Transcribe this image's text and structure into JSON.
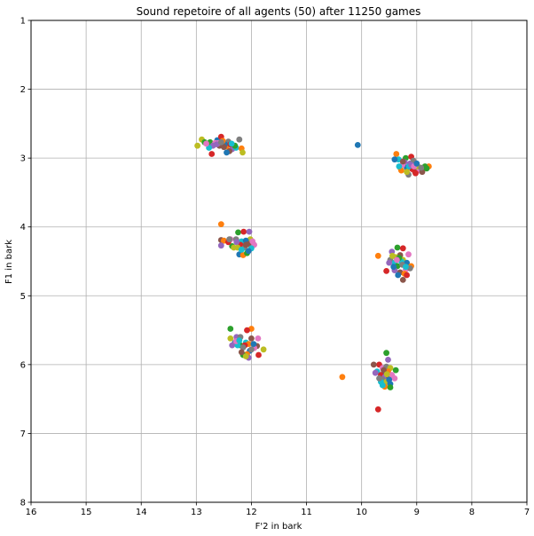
{
  "chart_data": {
    "type": "scatter",
    "title": "Sound repetoire of all agents (50) after 11250 games",
    "xlabel": "F'2 in bark",
    "ylabel": "F1 in bark",
    "xlim": [
      16,
      7
    ],
    "ylim": [
      8,
      1
    ],
    "x_ticks": [
      "16",
      "15",
      "14",
      "13",
      "12",
      "11",
      "10",
      "9",
      "8",
      "7"
    ],
    "y_ticks": [
      "1",
      "2",
      "3",
      "4",
      "5",
      "6",
      "7",
      "8"
    ],
    "grid": true,
    "colors": [
      "#1f77b4",
      "#ff7f0e",
      "#2ca02c",
      "#d62728",
      "#9467bd",
      "#8c564b",
      "#e377c2",
      "#7f7f7f",
      "#bcbd22",
      "#17becf"
    ],
    "points": [
      [
        12.62,
        2.74
      ],
      [
        12.45,
        2.83
      ],
      [
        12.75,
        2.77
      ],
      [
        12.55,
        2.69
      ],
      [
        12.35,
        2.87
      ],
      [
        12.58,
        2.82
      ],
      [
        12.66,
        2.78
      ],
      [
        12.42,
        2.76
      ],
      [
        12.9,
        2.73
      ],
      [
        12.28,
        2.85
      ],
      [
        12.48,
        2.8
      ],
      [
        12.52,
        2.75
      ],
      [
        12.85,
        2.77
      ],
      [
        12.38,
        2.8
      ],
      [
        12.7,
        2.82
      ],
      [
        12.4,
        2.9
      ],
      [
        12.6,
        2.78
      ],
      [
        12.22,
        2.73
      ],
      [
        12.98,
        2.82
      ],
      [
        12.77,
        2.85
      ],
      [
        12.45,
        2.92
      ],
      [
        12.18,
        2.86
      ],
      [
        12.3,
        2.82
      ],
      [
        12.72,
        2.94
      ],
      [
        12.63,
        2.8
      ],
      [
        12.5,
        2.84
      ],
      [
        12.82,
        2.79
      ],
      [
        12.55,
        2.77
      ],
      [
        12.16,
        2.92
      ],
      [
        12.36,
        2.79
      ],
      [
        10.07,
        2.81
      ],
      [
        9.37,
        2.94
      ],
      [
        9.2,
        3.0
      ],
      [
        9.1,
        2.98
      ],
      [
        9.12,
        3.08
      ],
      [
        9.03,
        3.2
      ],
      [
        8.95,
        3.18
      ],
      [
        9.15,
        3.24
      ],
      [
        9.3,
        3.14
      ],
      [
        9.33,
        3.02
      ],
      [
        9.18,
        3.14
      ],
      [
        8.78,
        3.12
      ],
      [
        8.85,
        3.12
      ],
      [
        9.08,
        3.16
      ],
      [
        9.22,
        3.06
      ],
      [
        8.9,
        3.2
      ],
      [
        9.26,
        3.1
      ],
      [
        9.06,
        3.04
      ],
      [
        8.98,
        3.12
      ],
      [
        9.14,
        3.12
      ],
      [
        9.4,
        3.02
      ],
      [
        9.28,
        3.18
      ],
      [
        8.82,
        3.15
      ],
      [
        9.02,
        3.22
      ],
      [
        9.1,
        3.1
      ],
      [
        9.25,
        3.05
      ],
      [
        9.05,
        3.12
      ],
      [
        8.92,
        3.14
      ],
      [
        9.18,
        3.2
      ],
      [
        9.32,
        3.12
      ],
      [
        9.0,
        3.08
      ],
      [
        12.55,
        3.96
      ],
      [
        12.24,
        4.08
      ],
      [
        12.14,
        4.07
      ],
      [
        12.04,
        4.07
      ],
      [
        12.55,
        4.19
      ],
      [
        12.38,
        4.18
      ],
      [
        12.28,
        4.18
      ],
      [
        12.02,
        4.18
      ],
      [
        12.18,
        4.21
      ],
      [
        12.1,
        4.2
      ],
      [
        12.5,
        4.2
      ],
      [
        12.35,
        4.28
      ],
      [
        12.2,
        4.26
      ],
      [
        12.55,
        4.27
      ],
      [
        12.05,
        4.25
      ],
      [
        11.95,
        4.26
      ],
      [
        12.12,
        4.3
      ],
      [
        12.32,
        4.3
      ],
      [
        12.0,
        4.31
      ],
      [
        12.22,
        4.4
      ],
      [
        12.15,
        4.41
      ],
      [
        12.08,
        4.38
      ],
      [
        12.42,
        4.22
      ],
      [
        12.27,
        4.22
      ],
      [
        12.1,
        4.26
      ],
      [
        11.98,
        4.21
      ],
      [
        12.4,
        4.18
      ],
      [
        12.25,
        4.3
      ],
      [
        12.18,
        4.33
      ],
      [
        12.05,
        4.35
      ],
      [
        9.7,
        4.42
      ],
      [
        9.35,
        4.3
      ],
      [
        9.25,
        4.31
      ],
      [
        9.45,
        4.36
      ],
      [
        9.3,
        4.41
      ],
      [
        9.15,
        4.4
      ],
      [
        9.48,
        4.48
      ],
      [
        9.25,
        4.48
      ],
      [
        9.4,
        4.52
      ],
      [
        9.18,
        4.52
      ],
      [
        9.1,
        4.57
      ],
      [
        9.35,
        4.57
      ],
      [
        9.55,
        4.64
      ],
      [
        9.4,
        4.63
      ],
      [
        9.3,
        4.66
      ],
      [
        9.2,
        4.62
      ],
      [
        9.12,
        4.6
      ],
      [
        9.38,
        4.44
      ],
      [
        9.28,
        4.5
      ],
      [
        9.42,
        4.58
      ],
      [
        9.22,
        4.68
      ],
      [
        9.32,
        4.45
      ],
      [
        9.18,
        4.7
      ],
      [
        9.5,
        4.52
      ],
      [
        9.25,
        4.77
      ],
      [
        9.36,
        4.48
      ],
      [
        9.26,
        4.55
      ],
      [
        9.44,
        4.42
      ],
      [
        9.2,
        4.58
      ],
      [
        9.34,
        4.7
      ],
      [
        12.0,
        5.48
      ],
      [
        12.38,
        5.48
      ],
      [
        12.08,
        5.5
      ],
      [
        12.27,
        5.6
      ],
      [
        12.0,
        5.62
      ],
      [
        11.88,
        5.62
      ],
      [
        12.2,
        5.6
      ],
      [
        12.38,
        5.62
      ],
      [
        12.1,
        5.68
      ],
      [
        12.3,
        5.68
      ],
      [
        12.05,
        5.7
      ],
      [
        12.2,
        5.72
      ],
      [
        12.12,
        5.72
      ],
      [
        12.35,
        5.72
      ],
      [
        11.9,
        5.73
      ],
      [
        11.95,
        5.76
      ],
      [
        12.15,
        5.75
      ],
      [
        11.78,
        5.78
      ],
      [
        12.25,
        5.72
      ],
      [
        12.03,
        5.8
      ],
      [
        12.08,
        5.85
      ],
      [
        12.15,
        5.86
      ],
      [
        11.87,
        5.86
      ],
      [
        12.05,
        5.9
      ],
      [
        12.18,
        5.82
      ],
      [
        12.28,
        5.66
      ],
      [
        12.0,
        5.78
      ],
      [
        12.1,
        5.88
      ],
      [
        12.22,
        5.65
      ],
      [
        11.96,
        5.7
      ],
      [
        10.35,
        6.18
      ],
      [
        9.55,
        5.83
      ],
      [
        9.68,
        6.0
      ],
      [
        9.52,
        5.93
      ],
      [
        9.78,
        6.0
      ],
      [
        9.62,
        6.05
      ],
      [
        9.55,
        6.03
      ],
      [
        9.48,
        6.05
      ],
      [
        9.72,
        6.1
      ],
      [
        9.58,
        6.12
      ],
      [
        9.52,
        6.1
      ],
      [
        9.38,
        6.08
      ],
      [
        9.65,
        6.15
      ],
      [
        9.58,
        6.18
      ],
      [
        9.5,
        6.18
      ],
      [
        9.4,
        6.2
      ],
      [
        9.62,
        6.22
      ],
      [
        9.55,
        6.25
      ],
      [
        9.65,
        6.25
      ],
      [
        9.48,
        6.28
      ],
      [
        9.58,
        6.32
      ],
      [
        9.48,
        6.33
      ],
      [
        9.7,
        6.65
      ],
      [
        9.75,
        6.12
      ],
      [
        9.6,
        6.08
      ],
      [
        9.45,
        6.15
      ],
      [
        9.68,
        6.2
      ],
      [
        9.54,
        6.14
      ],
      [
        9.62,
        6.3
      ],
      [
        9.5,
        6.22
      ]
    ]
  }
}
